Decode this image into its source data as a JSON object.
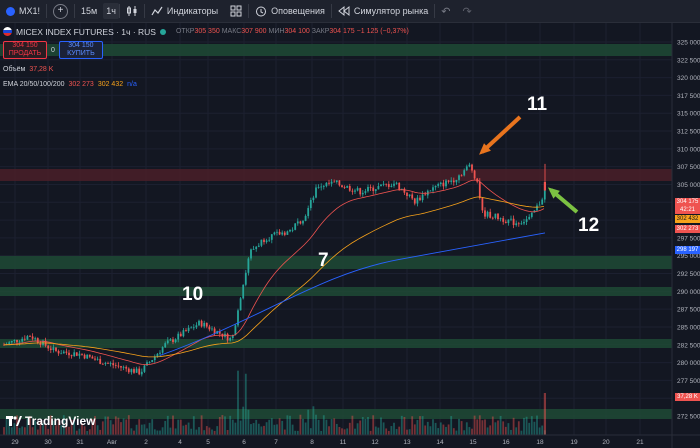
{
  "toolbar": {
    "symbol": "MX1!",
    "add_label": "+",
    "interval_15": "15м",
    "interval_1h": "1ч",
    "indicators": "Индикаторы",
    "alerts": "Оповещения",
    "replay": "Симулятор рынка",
    "undo": "↶",
    "redo": "↷"
  },
  "legend": {
    "title": "MICEX INDEX FUTURES · 1ч · RUS",
    "open_label": "ОТКР",
    "open": "305 350",
    "high_label": "МАКС",
    "high": "307 900",
    "low_label": "МИН",
    "low": "304 100",
    "close_label": "ЗАКР",
    "close": "304 175",
    "change": "−1 125 (−0,37%)",
    "sell_price": "304 150",
    "sell_label": "ПРОДАТЬ",
    "spread": "0",
    "buy_price": "304 150",
    "buy_label": "КУПИТЬ",
    "volume_label": "Объём",
    "volume_value": "37,28 K",
    "ema_label": "EMA 20/50/100/200",
    "ema1": "302 273",
    "ema2": "302 432",
    "ema3": "n/a"
  },
  "axis": {
    "price_ticks": [
      "325 000",
      "322 500",
      "320 000",
      "317 500",
      "315 000",
      "312 500",
      "310 000",
      "307 500",
      "305 000",
      "302 500",
      "300 000",
      "297 500",
      "295 000",
      "292 500",
      "290 000",
      "287 500",
      "285 000",
      "282 500",
      "280 000",
      "277 500",
      "275 000",
      "272 500"
    ],
    "time_ticks": [
      "29",
      "30",
      "31",
      "Авг",
      "2",
      "4",
      "5",
      "6",
      "7",
      "8",
      "11",
      "12",
      "13",
      "14",
      "15",
      "16",
      "18",
      "19",
      "20",
      "21"
    ]
  },
  "tags": {
    "price": "304 175",
    "countdown": "42:21",
    "ema_a": "302 432",
    "ema_b": "302 273",
    "ema_c": "298 197",
    "volume": "37,28 K"
  },
  "annotations": {
    "a11": "11",
    "a10": "10",
    "a7": "7",
    "a12": "12"
  },
  "watermark": "TradingView",
  "colors": {
    "bg": "#131722",
    "up": "#26a69a",
    "down": "#ef5350",
    "zone_green": "#1f4a35",
    "zone_red": "#4a1f28",
    "ema_fast": "#ef5350",
    "ema_mid": "#f7a21b",
    "ema_slow": "#2962ff",
    "arrow_orange": "#e8741e",
    "arrow_green": "#7cc242"
  }
}
